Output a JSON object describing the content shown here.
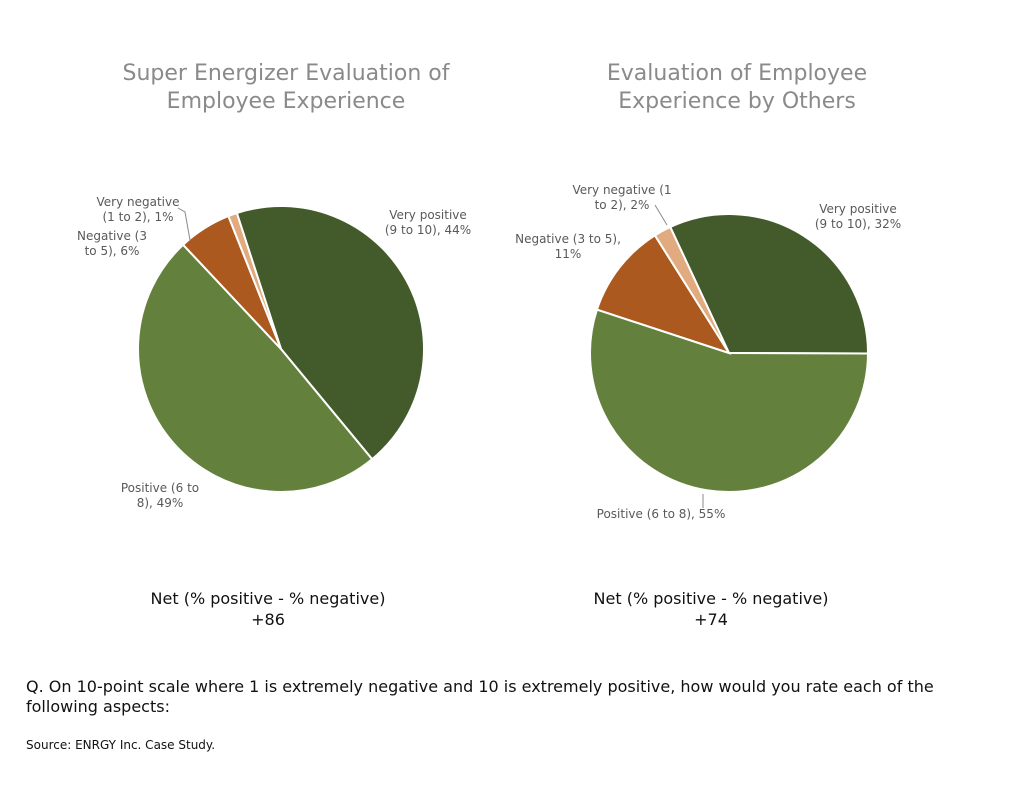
{
  "chart_data": [
    {
      "type": "pie",
      "title_lines": [
        "Super Energizer Evaluation of",
        "Employee Experience"
      ],
      "slices": [
        {
          "name": "Very positive (9 to 10)",
          "value": 44,
          "label_lines": [
            "Very positive",
            "(9 to 10), 44%"
          ],
          "color": "#435a2b"
        },
        {
          "name": "Positive (6 to 8)",
          "value": 49,
          "label_lines": [
            "Positive (6 to",
            "8), 49%"
          ],
          "color": "#64803d"
        },
        {
          "name": "Negative (3 to 5)",
          "value": 6,
          "label_lines": [
            "Negative (3",
            "to 5), 6%"
          ],
          "color": "#ab591e"
        },
        {
          "name": "Very negative (1 to 2)",
          "value": 1,
          "label_lines": [
            "Very negative",
            "(1 to 2), 1%"
          ],
          "color": "#e2ab7f"
        }
      ],
      "net_label": "Net (% positive - % negative)",
      "net_value": "+86"
    },
    {
      "type": "pie",
      "title_lines": [
        "Evaluation of Employee",
        "Experience by Others"
      ],
      "slices": [
        {
          "name": "Very positive (9 to 10)",
          "value": 32,
          "label_lines": [
            "Very positive",
            "(9 to 10), 32%"
          ],
          "color": "#435a2b"
        },
        {
          "name": "Positive (6 to 8)",
          "value": 55,
          "label_lines": [
            "Positive (6 to 8), 55%"
          ],
          "color": "#64803d"
        },
        {
          "name": "Negative (3 to 5)",
          "value": 11,
          "label_lines": [
            "Negative (3 to 5),",
            "11%"
          ],
          "color": "#ab591e"
        },
        {
          "name": "Very negative (1 to 2)",
          "value": 2,
          "label_lines": [
            "Very negative (1",
            "to 2), 2%"
          ],
          "color": "#e2ab7f"
        }
      ],
      "net_label": "Net (% positive - % negative)",
      "net_value": "+74"
    }
  ],
  "question": "Q. On 10-point scale where 1 is extremely negative and 10 is extremely positive, how would you rate each of the following aspects:",
  "source": "Source: ENRGY Inc. Case Study."
}
